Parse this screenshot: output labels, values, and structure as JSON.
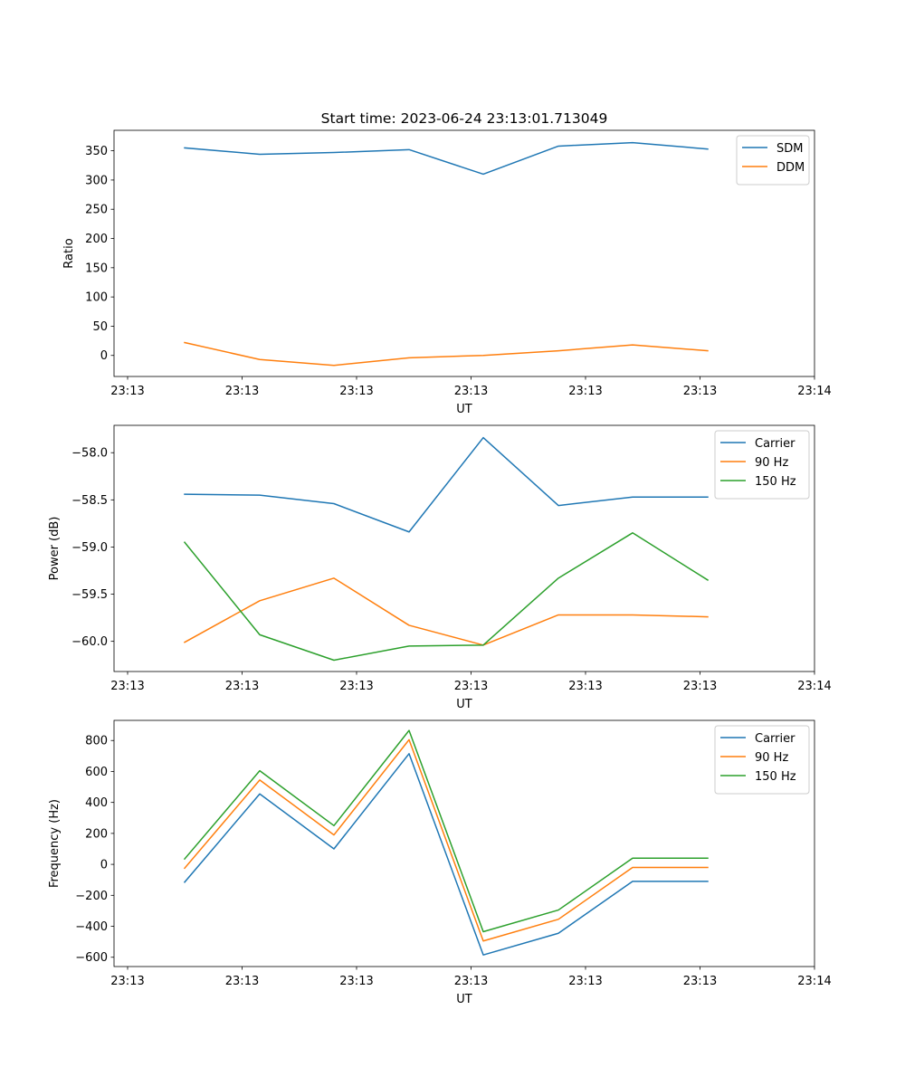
{
  "figure": {
    "title": "Start time: 2023-06-24 23:13:01.713049"
  },
  "chart_data": [
    {
      "type": "line",
      "xlabel": "UT",
      "ylabel": "Ratio",
      "x_ticks": [
        "23:13",
        "23:13",
        "23:13",
        "23:13",
        "23:13",
        "23:13",
        "23:14"
      ],
      "y_ticks": [
        0,
        50,
        100,
        150,
        200,
        250,
        300,
        350
      ],
      "ylim": [
        -36,
        385
      ],
      "grid": false,
      "legend": "upper right",
      "series": [
        {
          "name": "SDM",
          "color": "#1f77b4",
          "values": [
            355,
            344,
            347,
            352,
            310,
            358,
            364,
            353
          ]
        },
        {
          "name": "DDM",
          "color": "#ff7f0e",
          "values": [
            22,
            -7,
            -17,
            -4,
            0,
            8,
            18,
            8
          ]
        }
      ]
    },
    {
      "type": "line",
      "xlabel": "UT",
      "ylabel": "Power (dB)",
      "x_ticks": [
        "23:13",
        "23:13",
        "23:13",
        "23:13",
        "23:13",
        "23:13",
        "23:14"
      ],
      "y_ticks": [
        -58.0,
        -58.5,
        -59.0,
        -59.5,
        -60.0
      ],
      "ylim": [
        -60.32,
        -57.71
      ],
      "grid": false,
      "legend": "upper right",
      "series": [
        {
          "name": "Carrier",
          "color": "#1f77b4",
          "values": [
            -58.44,
            -58.45,
            -58.54,
            -58.84,
            -57.84,
            -58.56,
            -58.47,
            -58.47
          ]
        },
        {
          "name": "90 Hz",
          "color": "#ff7f0e",
          "values": [
            -60.01,
            -59.57,
            -59.33,
            -59.83,
            -60.04,
            -59.72,
            -59.72,
            -59.74
          ]
        },
        {
          "name": "150 Hz",
          "color": "#2ca02c",
          "values": [
            -58.95,
            -59.93,
            -60.2,
            -60.05,
            -60.04,
            -59.33,
            -58.85,
            -59.35
          ]
        }
      ]
    },
    {
      "type": "line",
      "xlabel": "UT",
      "ylabel": "Frequency (Hz)",
      "x_ticks": [
        "23:13",
        "23:13",
        "23:13",
        "23:13",
        "23:13",
        "23:13",
        "23:14"
      ],
      "y_ticks": [
        800,
        600,
        400,
        200,
        0,
        -200,
        -400,
        -600
      ],
      "ylim": [
        -660,
        930
      ],
      "grid": false,
      "legend": "upper right",
      "series": [
        {
          "name": "Carrier",
          "color": "#1f77b4",
          "values": [
            -115,
            455,
            100,
            715,
            -585,
            -445,
            -110,
            -110
          ]
        },
        {
          "name": "90 Hz",
          "color": "#ff7f0e",
          "values": [
            -25,
            545,
            190,
            805,
            -495,
            -355,
            -20,
            -20
          ]
        },
        {
          "name": "150 Hz",
          "color": "#2ca02c",
          "values": [
            35,
            605,
            250,
            865,
            -435,
            -295,
            40,
            40
          ]
        }
      ]
    }
  ]
}
